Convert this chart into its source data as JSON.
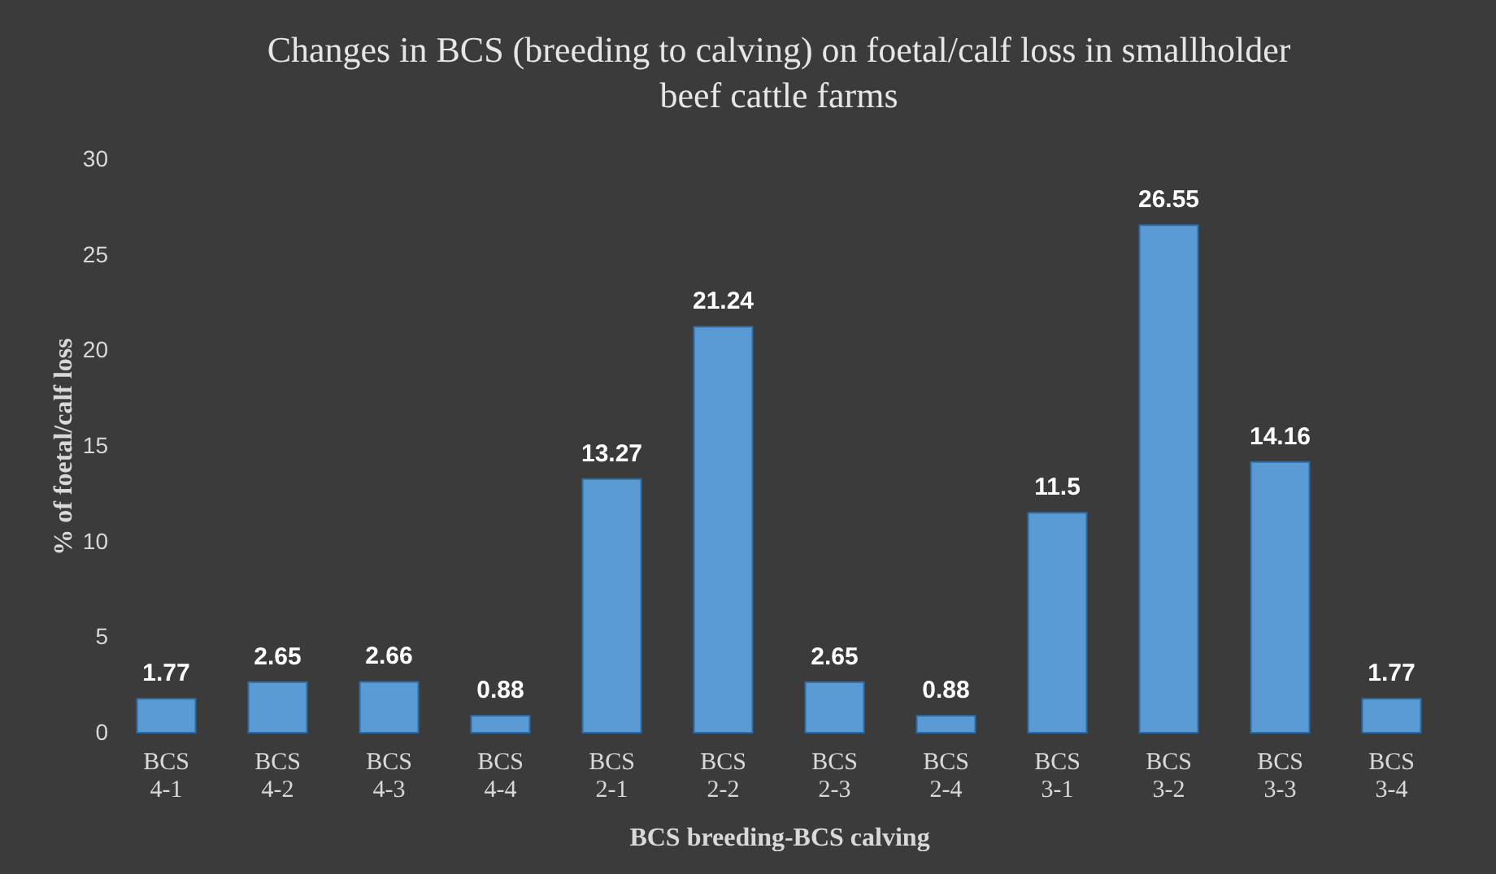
{
  "chart_data": {
    "type": "bar",
    "title": "Changes in BCS (breeding to calving) on foetal/calf loss in smallholder beef cattle farms",
    "xlabel": "BCS breeding-BCS calving",
    "ylabel": "% of foetal/calf loss",
    "categories": [
      "BCS 4-1",
      "BCS 4-2",
      "BCS 4-3",
      "BCS 4-4",
      "BCS 2-1",
      "BCS 2-2",
      "BCS 2-3",
      "BCS 2-4",
      "BCS 3-1",
      "BCS 3-2",
      "BCS 3-3",
      "BCS 3-4"
    ],
    "values": [
      1.77,
      2.65,
      2.66,
      0.88,
      13.27,
      21.24,
      2.65,
      0.88,
      11.5,
      26.55,
      14.16,
      1.77
    ],
    "color": "#5b9bd5",
    "ylim": [
      0,
      30
    ],
    "yticks": [
      0,
      5,
      10,
      15,
      20,
      25,
      30
    ],
    "grid": false,
    "data_labels": true
  }
}
